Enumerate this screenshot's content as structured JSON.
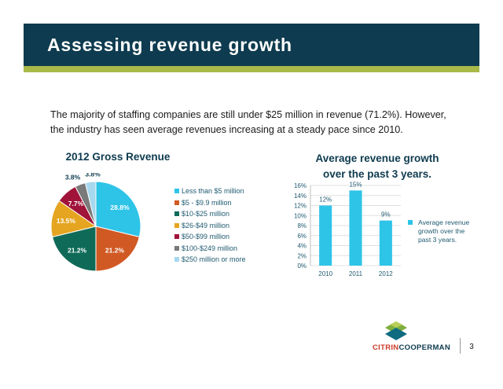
{
  "slide": {
    "title": "Assessing revenue growth",
    "intro": "The majority of staffing companies are still  under $25 million in revenue (71.2%). However, the industry has seen average revenues increasing  at a steady pace since 2010.",
    "page_number": "3"
  },
  "logo": {
    "part1": "CITRIN",
    "part2": "COOPERMAN"
  },
  "chart_data": [
    {
      "type": "pie",
      "title": "2012 Gross Revenue",
      "categories": [
        "Less than $5 million",
        "$5 - $9.9 million",
        "$10-$25 million",
        "$26-$49 million",
        "$50-$99 million",
        "$100-$249 million",
        "$250 million or more"
      ],
      "values": [
        28.8,
        21.2,
        21.2,
        13.5,
        7.7,
        3.8,
        3.8
      ],
      "labels": [
        "28.8%",
        "21.2%",
        "21.2%",
        "13.5%",
        "7.7%",
        "3.8%",
        "3.8%"
      ],
      "colors": [
        "#2ec4e8",
        "#d15a24",
        "#0f6b58",
        "#e5a520",
        "#a0143a",
        "#7a7a7a",
        "#a6d8ee"
      ],
      "legend": "right"
    },
    {
      "type": "bar",
      "title": "Average revenue growth over the past 3 years.",
      "categories": [
        "2010",
        "2011",
        "2012"
      ],
      "values": [
        12,
        15,
        9
      ],
      "labels": [
        "12%",
        "15%",
        "9%"
      ],
      "series_name": "Average revenue growth over the past 3 years.",
      "ylim": [
        0,
        16
      ],
      "yticks": [
        "0%",
        "2%",
        "4%",
        "6%",
        "8%",
        "10%",
        "12%",
        "14%",
        "16%"
      ],
      "color": "#2ec4e8",
      "grid": true,
      "legend": "right"
    }
  ]
}
